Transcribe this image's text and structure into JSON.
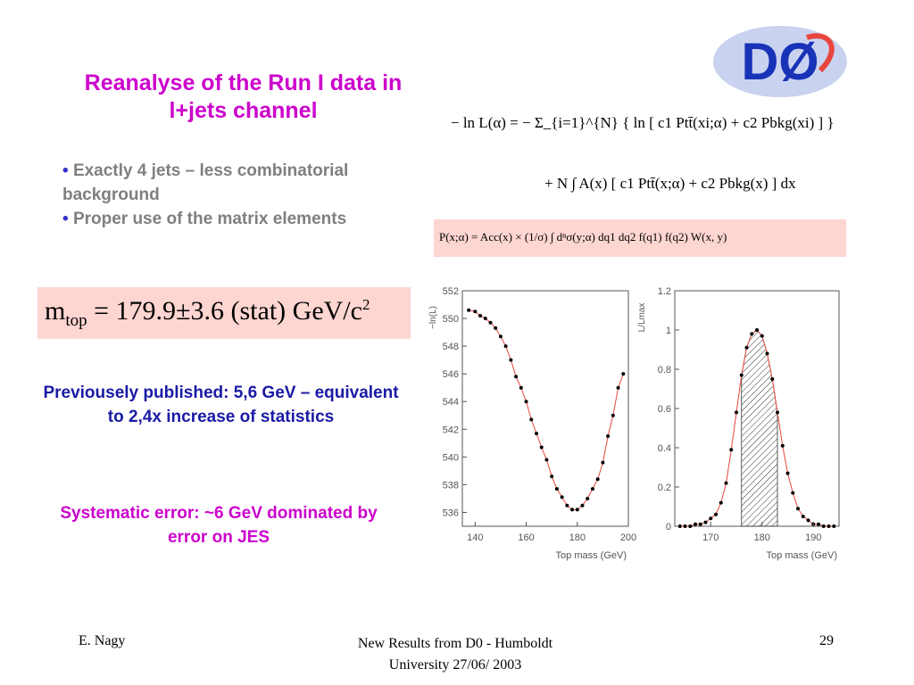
{
  "slide": {
    "title": "Reanalyse of the Run I data in l+jets channel",
    "bullets": [
      "Exactly 4 jets – less combinatorial background",
      "Proper use of the matrix elements"
    ],
    "mass_result": {
      "symbol": "m",
      "subscript": "top",
      "value": "179.9",
      "pm": "±",
      "error": "3.6",
      "tag": "(stat)",
      "unit": "GeV/c",
      "power": "2"
    },
    "previous_note": "Previousely published: 5,6 GeV – equivalent to 2,4x increase of statistics",
    "systematic_note": "Systematic error: ~6 GeV dominated by error on JES",
    "logo_text": "DØ"
  },
  "equations": {
    "likelihood_line1": "− ln L(α) = − Σ_{i=1}^{N} { ln [ c1 Ptt̄(xi;α) + c2 Pbkg(xi) ] }",
    "likelihood_line2": "+ N ∫ A(x) [ c1 Ptt̄(x;α) + c2 Pbkg(x) ] dx",
    "probability": "P(x;α) = Acc(x) × (1/σ) ∫ dⁿσ(y;α) dq1 dq2 f(q1) f(q2) W(x, y)"
  },
  "footer": {
    "author": "E. Nagy",
    "center_line1": "New Results from D0 - Humboldt",
    "center_line2": "University  27/06/ 2003",
    "page": "29"
  },
  "colors": {
    "title": "#cc00cc",
    "bullet_text": "#7f7f7f",
    "bullet_marker": "#3333cc",
    "blue_note": "#1a1aa6",
    "highlight_box": "#fdd5d1",
    "curve": "#e8463c"
  },
  "chart_data": [
    {
      "type": "scatter",
      "title": "",
      "xlabel": "Top mass (GeV)",
      "ylabel": "−ln(L)",
      "xlim": [
        135,
        200
      ],
      "ylim": [
        535,
        552
      ],
      "xticks": [
        140,
        160,
        180,
        200
      ],
      "yticks": [
        536,
        538,
        540,
        542,
        544,
        546,
        548,
        550,
        552
      ],
      "points_x": [
        137.5,
        140,
        142,
        144,
        146,
        148,
        150,
        152,
        154,
        156,
        158,
        160,
        162,
        164,
        166,
        168,
        170,
        172,
        174,
        176,
        178,
        180,
        182,
        184,
        186,
        188,
        190,
        192,
        194,
        196,
        198
      ],
      "points_y": [
        550.6,
        550.5,
        550.2,
        550.0,
        549.7,
        549.3,
        548.7,
        548.0,
        547.0,
        545.8,
        545.0,
        544.0,
        542.7,
        541.7,
        540.7,
        539.8,
        538.6,
        537.7,
        537.1,
        536.5,
        536.2,
        536.2,
        536.5,
        537.0,
        537.7,
        538.4,
        539.6,
        541.5,
        543.0,
        545.0,
        546.0
      ],
      "curve": "parabola, minimum near 179.9"
    },
    {
      "type": "scatter",
      "title": "",
      "xlabel": "Top mass (GeV)",
      "ylabel": "L/Lmax",
      "xlim": [
        163,
        195
      ],
      "ylim": [
        0,
        1.2
      ],
      "xticks": [
        170,
        180,
        190
      ],
      "yticks": [
        0,
        0.2,
        0.4,
        0.6,
        0.8,
        1,
        1.2
      ],
      "points_x": [
        164,
        165,
        166,
        167,
        168,
        169,
        170,
        171,
        172,
        173,
        174,
        175,
        176,
        177,
        178,
        179,
        180,
        181,
        182,
        183,
        184,
        185,
        186,
        187,
        188,
        189,
        190,
        191,
        192,
        193,
        194
      ],
      "points_y": [
        0.0,
        0.0,
        0.0,
        0.01,
        0.01,
        0.02,
        0.04,
        0.06,
        0.12,
        0.22,
        0.39,
        0.58,
        0.77,
        0.91,
        0.98,
        1.0,
        0.97,
        0.88,
        0.75,
        0.58,
        0.41,
        0.27,
        0.17,
        0.09,
        0.05,
        0.03,
        0.01,
        0.01,
        0.0,
        0.0,
        0.0
      ],
      "shaded_range": [
        176,
        183
      ],
      "curve": "gaussian peak near 179.9"
    }
  ]
}
